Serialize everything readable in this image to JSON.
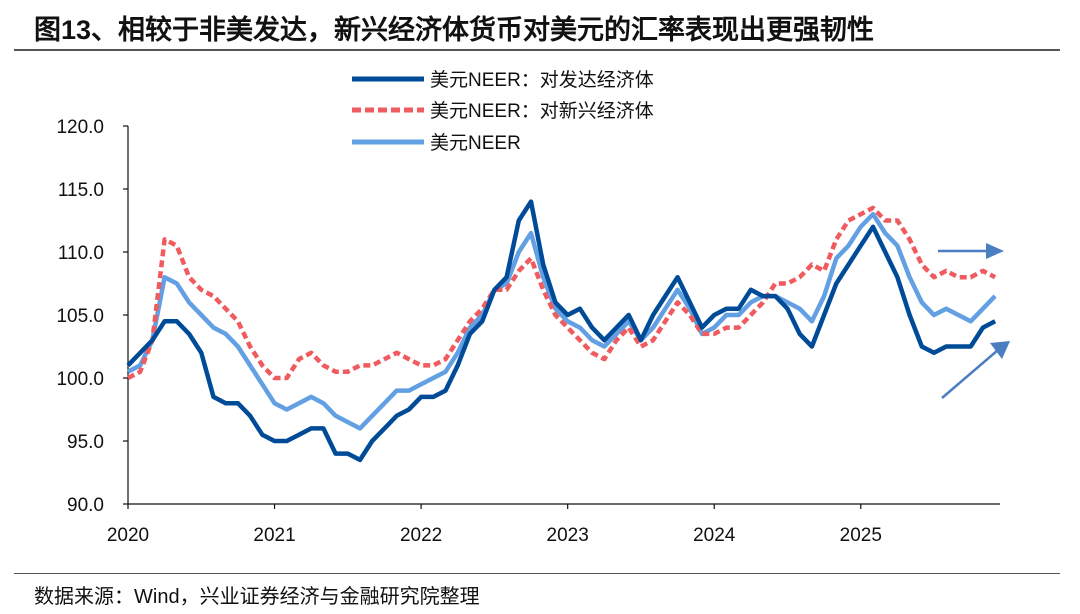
{
  "title": "图13、相较于非美发达，新兴经济体货币对美元的汇率表现出更强韧性",
  "source": "数据来源：Wind，兴业证券经济与金融研究院整理",
  "chart_data": {
    "type": "line",
    "title": "图13、相较于非美发达，新兴经济体货币对美元的汇率表现出更强韧性",
    "xlabel": "",
    "ylabel": "",
    "xlim": [
      2020.0,
      2025.95
    ],
    "ylim": [
      90,
      120
    ],
    "xticks": [
      "2020",
      "2021",
      "2022",
      "2023",
      "2024",
      "2025"
    ],
    "yticks": [
      "90.0",
      "95.0",
      "100.0",
      "105.0",
      "110.0",
      "115.0",
      "120.0"
    ],
    "grid": false,
    "legend_position": "top-center",
    "x_start": 2020.0,
    "x_step_years": 0.08333,
    "series": [
      {
        "name": "美元NEER：对发达经济体",
        "color": "#004b97",
        "style": "solid",
        "values": [
          101,
          102,
          103,
          104.5,
          104.5,
          103.5,
          102,
          98.5,
          98,
          98,
          97,
          95.5,
          95,
          95,
          95.5,
          96,
          96,
          94,
          94,
          93.5,
          95,
          96,
          97,
          97.5,
          98.5,
          98.5,
          99,
          101,
          103.5,
          104.5,
          107,
          108,
          112.5,
          114,
          109,
          106,
          105,
          105.5,
          104,
          103,
          104,
          105,
          103,
          105,
          106.5,
          108,
          106,
          104,
          105,
          105.5,
          105.5,
          107,
          106.5,
          106.5,
          105.5,
          103.5,
          102.5,
          105,
          107.5,
          109,
          110.5,
          112,
          110,
          108,
          105,
          102.5,
          102,
          102.5,
          102.5,
          102.5,
          104,
          104.5
        ]
      },
      {
        "name": "美元NEER：对新兴经济体",
        "color": "#ef5b5f",
        "style": "dashed",
        "values": [
          100,
          100.5,
          103,
          111,
          110.5,
          108,
          107,
          106.5,
          105.5,
          104.5,
          102.5,
          101,
          100,
          100,
          101.5,
          102,
          101,
          100.5,
          100.5,
          101,
          101,
          101.5,
          102,
          101.5,
          101,
          101,
          101.5,
          103,
          104.5,
          105.5,
          107,
          107,
          108.5,
          109.5,
          107,
          105,
          104,
          103,
          102,
          101.5,
          103,
          104,
          102.5,
          103,
          104.5,
          106,
          105,
          103.5,
          103.5,
          104,
          104,
          105,
          106,
          107.5,
          107.5,
          108,
          109,
          108.5,
          111,
          112.5,
          113,
          113.5,
          112.5,
          112.5,
          111,
          109,
          108,
          108.5,
          108,
          108,
          108.5,
          108
        ]
      },
      {
        "name": "美元NEER",
        "color": "#62a0e3",
        "style": "solid",
        "values": [
          100.5,
          101,
          103,
          108,
          107.5,
          106,
          105,
          104,
          103.5,
          102.5,
          101,
          99.5,
          98,
          97.5,
          98,
          98.5,
          98,
          97,
          96.5,
          96,
          97,
          98,
          99,
          99,
          99.5,
          100,
          100.5,
          102,
          104,
          105,
          107,
          107.5,
          110,
          111.5,
          108,
          105.5,
          104.5,
          104,
          103,
          102.5,
          103.5,
          104.5,
          103,
          104,
          105.5,
          107,
          105.5,
          103.5,
          104,
          105,
          105,
          106,
          106.5,
          106.5,
          106,
          105.5,
          104.5,
          106.5,
          109.5,
          110.5,
          112,
          113,
          111.5,
          110.5,
          108,
          106,
          105,
          105.5,
          105,
          104.5,
          105.5,
          106.5
        ]
      }
    ],
    "annotations": [
      "arrow-right (EM flat)",
      "arrow-up-right (developed rising)"
    ]
  }
}
